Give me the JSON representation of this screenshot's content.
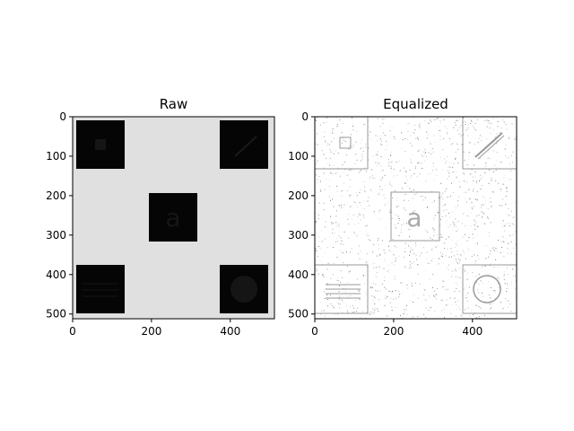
{
  "chart_data": [
    {
      "type": "image",
      "title": "Raw",
      "xlim": [
        0,
        512
      ],
      "ylim": [
        512,
        0
      ],
      "xticks": [
        0,
        200,
        400
      ],
      "yticks": [
        0,
        100,
        200,
        300,
        400,
        500
      ],
      "background": "#e0e0e0",
      "content": [
        "dark square with small square",
        "dark square with diagonal line",
        "dark square with letter a",
        "dark square with horizontal lines",
        "dark square with circle"
      ]
    },
    {
      "type": "image",
      "title": "Equalized",
      "xlim": [
        0,
        512
      ],
      "ylim": [
        512,
        0
      ],
      "xticks": [
        0,
        200,
        400
      ],
      "yticks": [
        0,
        100,
        200,
        300,
        400,
        500
      ],
      "background": "#ffffff",
      "content": [
        "noise speckle",
        "outlined squares",
        "letter a",
        "diagonal line",
        "horizontal lines",
        "circle"
      ]
    }
  ]
}
